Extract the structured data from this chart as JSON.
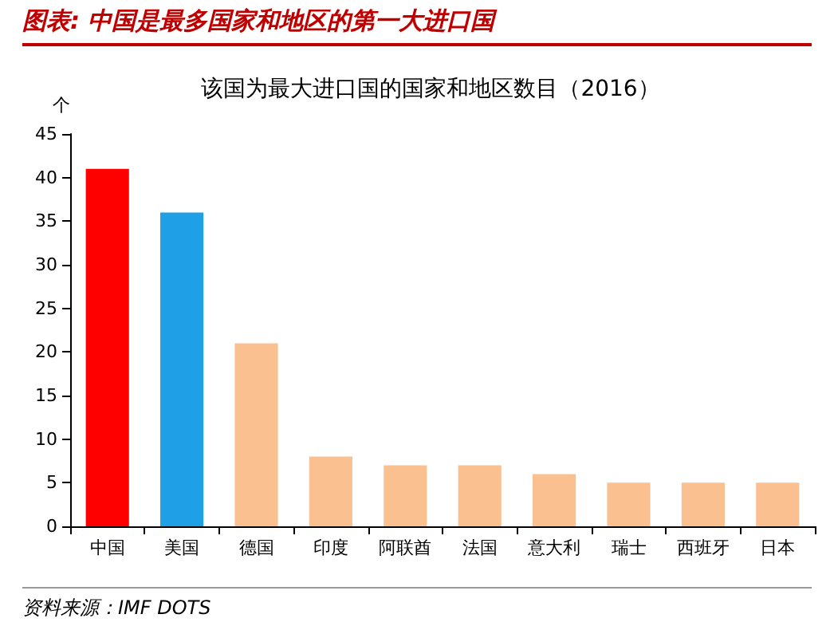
{
  "chart_data": {
    "type": "bar",
    "title": "图表: 中国是最多国家和地区的第一大进口国",
    "subtitle": "该国为最大进口国的国家和地区数目（2016）",
    "ylabel": "个",
    "categories": [
      "中国",
      "美国",
      "德国",
      "印度",
      "阿联酋",
      "法国",
      "意大利",
      "瑞士",
      "西班牙",
      "日本"
    ],
    "values": [
      41,
      36,
      21,
      8,
      7,
      7,
      6,
      5,
      5,
      5
    ],
    "colors": [
      "#ff0000",
      "#1e9fe6",
      "#fac090",
      "#fac090",
      "#fac090",
      "#fac090",
      "#fac090",
      "#fac090",
      "#fac090",
      "#fac090"
    ],
    "ylim": [
      0,
      45
    ],
    "yticks": [
      0,
      5,
      10,
      15,
      20,
      25,
      30,
      35,
      40,
      45
    ],
    "grid": false,
    "annotations": [
      "资料来源：IMF DOTS"
    ]
  }
}
